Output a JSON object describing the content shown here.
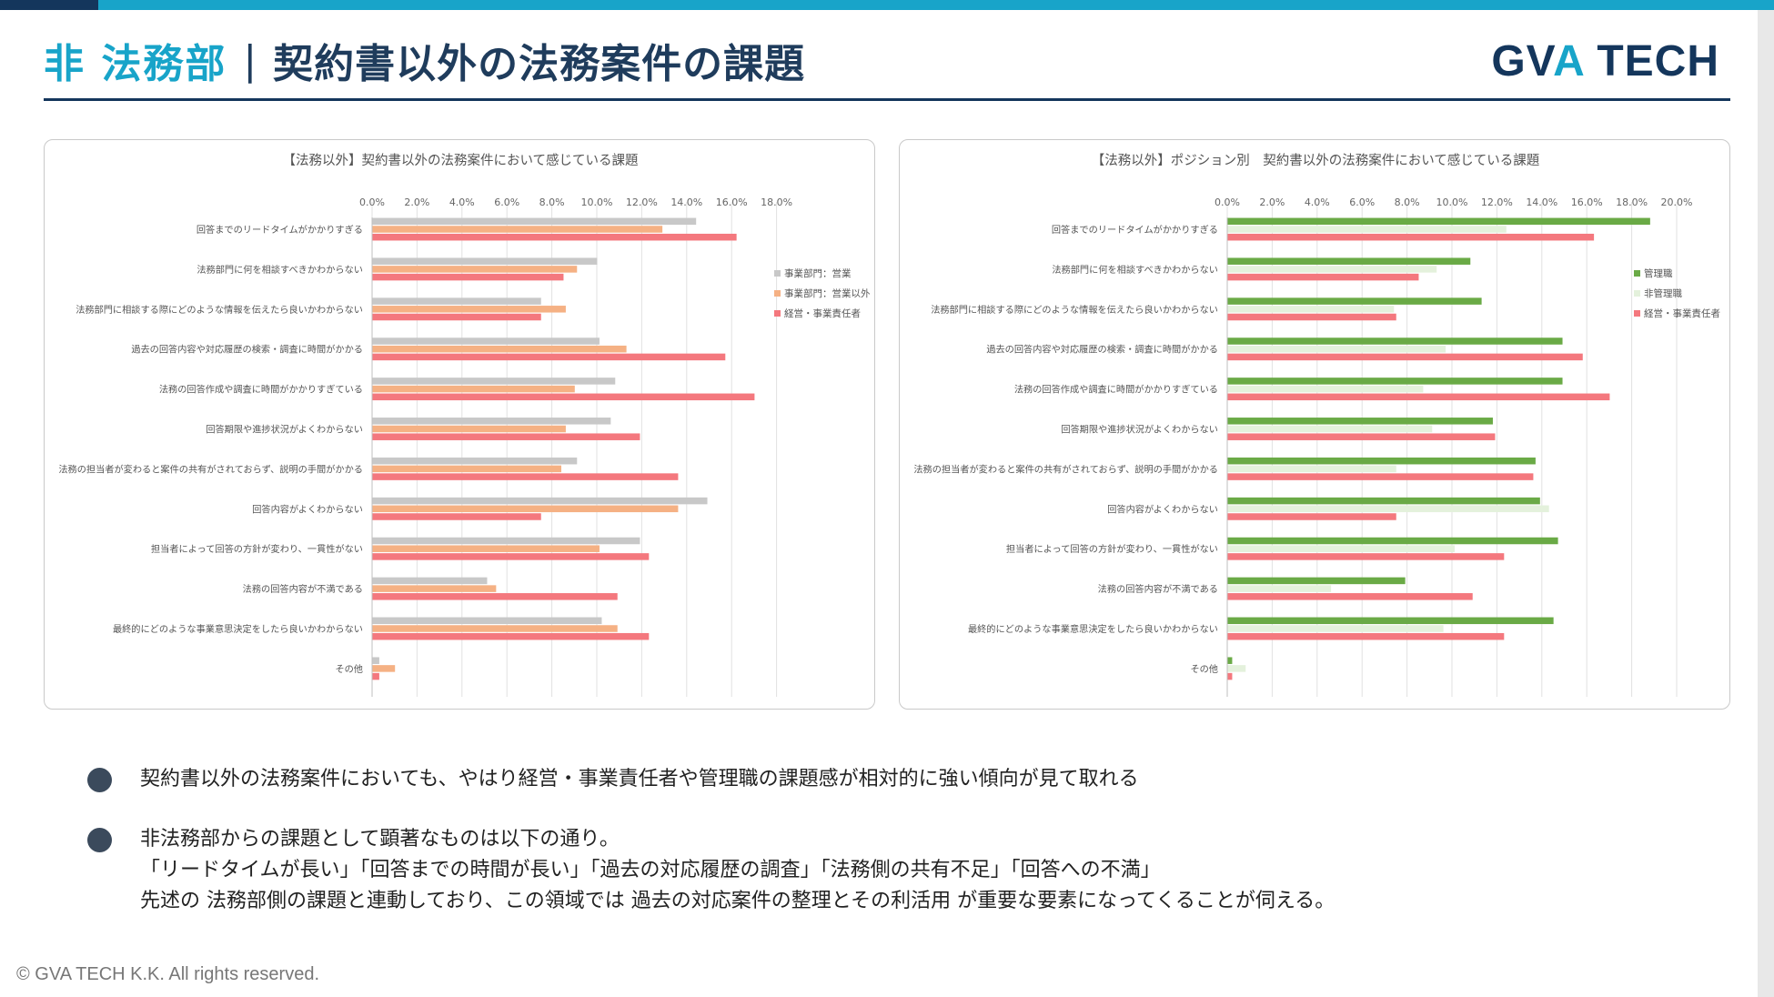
{
  "header": {
    "accent": "非 法務部",
    "separator": "|",
    "title": "契約書以外の法務案件の課題",
    "logo_part1": "GV",
    "logo_part2": "A",
    "logo_part3": " TECH"
  },
  "colors": {
    "brand_teal": "#18a4c9",
    "brand_navy": "#14365c"
  },
  "chart_data": [
    {
      "type": "bar",
      "orientation": "horizontal",
      "title": "【法務以外】契約書以外の法務案件において感じている課題",
      "categories": [
        "回答までのリードタイムがかかりすぎる",
        "法務部門に何を相談すべきかわからない",
        "法務部門に相談する際にどのような情報を伝えたら良いかわからない",
        "過去の回答内容や対応履歴の検索・調査に時間がかかる",
        "法務の回答作成や調査に時間がかかりすぎている",
        "回答期限や進捗状況がよくわからない",
        "法務の担当者が変わると案件の共有がされておらず、説明の手間がかかる",
        "回答内容がよくわからない",
        "担当者によって回答の方針が変わり、一貫性がない",
        "法務の回答内容が不満である",
        "最終的にどのような事業意思決定をしたら良いかわからない",
        "その他"
      ],
      "series": [
        {
          "name": "事業部門：営業",
          "color": "#c8c8c8",
          "values": [
            14.4,
            10.0,
            7.5,
            10.1,
            10.8,
            10.6,
            9.1,
            14.9,
            11.9,
            5.1,
            10.2,
            0.3
          ]
        },
        {
          "name": "事業部門：営業以外",
          "color": "#f5b184",
          "values": [
            12.9,
            9.1,
            8.6,
            11.3,
            9.0,
            8.6,
            8.4,
            13.6,
            10.1,
            5.5,
            10.9,
            1.0
          ]
        },
        {
          "name": "経営・事業責任者",
          "color": "#f4787e",
          "values": [
            16.2,
            8.5,
            7.5,
            15.7,
            17.0,
            11.9,
            13.6,
            7.5,
            12.3,
            10.9,
            12.3,
            0.3
          ]
        }
      ],
      "x_ticks": [
        "0.0%",
        "2.0%",
        "4.0%",
        "6.0%",
        "8.0%",
        "10.0%",
        "12.0%",
        "14.0%",
        "16.0%",
        "18.0%"
      ],
      "xlim": [
        0,
        18
      ],
      "legend_position": "right",
      "grid": true
    },
    {
      "type": "bar",
      "orientation": "horizontal",
      "title": "【法務以外】ポジション別　契約書以外の法務案件において感じている課題",
      "categories": [
        "回答までのリードタイムがかかりすぎる",
        "法務部門に何を相談すべきかわからない",
        "法務部門に相談する際にどのような情報を伝えたら良いかわからない",
        "過去の回答内容や対応履歴の検索・調査に時間がかかる",
        "法務の回答作成や調査に時間がかかりすぎている",
        "回答期限や進捗状況がよくわからない",
        "法務の担当者が変わると案件の共有がされておらず、説明の手間がかかる",
        "回答内容がよくわからない",
        "担当者によって回答の方針が変わり、一貫性がない",
        "法務の回答内容が不満である",
        "最終的にどのような事業意思決定をしたら良いかわからない",
        "その他"
      ],
      "series": [
        {
          "name": "管理職",
          "color": "#6aaa46",
          "values": [
            18.8,
            10.8,
            11.3,
            14.9,
            14.9,
            11.8,
            13.7,
            13.9,
            14.7,
            7.9,
            14.5,
            0.2
          ]
        },
        {
          "name": "非管理職",
          "color": "#e4f1dc",
          "values": [
            12.4,
            9.3,
            7.4,
            9.7,
            8.7,
            9.1,
            7.5,
            14.3,
            10.1,
            4.6,
            9.6,
            0.8
          ]
        },
        {
          "name": "経営・事業責任者",
          "color": "#f4787e",
          "values": [
            16.3,
            8.5,
            7.5,
            15.8,
            17.0,
            11.9,
            13.6,
            7.5,
            12.3,
            10.9,
            12.3,
            0.2
          ]
        }
      ],
      "x_ticks": [
        "0.0%",
        "2.0%",
        "4.0%",
        "6.0%",
        "8.0%",
        "10.0%",
        "12.0%",
        "14.0%",
        "16.0%",
        "18.0%",
        "20.0%"
      ],
      "xlim": [
        0,
        20
      ],
      "legend_position": "right",
      "grid": true
    }
  ],
  "bullets": [
    {
      "lines": [
        "契約書以外の法務案件においても、やはり経営・事業責任者や管理職の課題感が相対的に強い傾向が見て取れる"
      ]
    },
    {
      "lines": [
        "非法務部からの課題として顕著なものは以下の通り。",
        "「リードタイムが長い」「回答までの時間が長い」「過去の対応履歴の調査」「法務側の共有不足」「回答への不満」",
        "先述の 法務部側の課題と連動しており、この領域では 過去の対応案件の整理とその利活用 が重要な要素になってくることが伺える。"
      ]
    }
  ],
  "footer": "© GVA TECH K.K. All rights reserved."
}
